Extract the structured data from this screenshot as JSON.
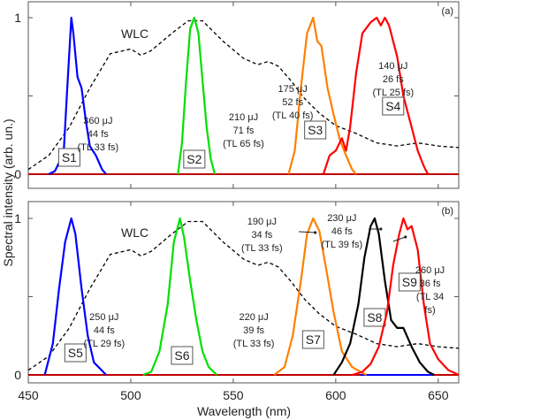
{
  "chart_data": [
    {
      "type": "line",
      "panel": "(a)",
      "xlim": [
        450,
        660
      ],
      "ylim": [
        0,
        1
      ],
      "wlc": {
        "name": "WLC",
        "x": [
          450,
          460,
          470,
          480,
          490,
          500,
          505,
          510,
          520,
          528,
          535,
          545,
          555,
          562,
          567,
          572,
          578,
          585,
          592,
          600,
          610,
          620,
          630,
          640,
          650,
          660
        ],
        "y": [
          0.03,
          0.12,
          0.3,
          0.55,
          0.77,
          0.8,
          0.76,
          0.79,
          0.9,
          0.98,
          0.98,
          0.85,
          0.74,
          0.7,
          0.72,
          0.69,
          0.6,
          0.48,
          0.39,
          0.31,
          0.26,
          0.2,
          0.18,
          0.2,
          0.18,
          0.17
        ]
      },
      "series": [
        {
          "name": "S1",
          "color": "#0000ff",
          "x": [
            460,
            463,
            466,
            467,
            469,
            471,
            472,
            474,
            476,
            478,
            480,
            483,
            486,
            488
          ],
          "y": [
            0,
            0.02,
            0.1,
            0.07,
            0.55,
            1,
            0.9,
            0.62,
            0.55,
            0.35,
            0.18,
            0.12,
            0.03,
            0
          ]
        },
        {
          "name": "S2",
          "color": "#00e000",
          "x": [
            523,
            525,
            527,
            529,
            531,
            533,
            535,
            537,
            539,
            541
          ],
          "y": [
            0,
            0.2,
            0.6,
            0.93,
            1,
            0.9,
            0.6,
            0.3,
            0.1,
            0
          ]
        },
        {
          "name": "S3",
          "color": "#ff8000",
          "x": [
            577,
            580,
            583,
            586,
            589,
            591,
            593,
            596,
            599,
            602,
            605,
            608,
            610
          ],
          "y": [
            0,
            0.15,
            0.55,
            0.9,
            1,
            0.85,
            0.82,
            0.55,
            0.38,
            0.22,
            0.12,
            0.03,
            0
          ]
        },
        {
          "name": "S4",
          "color": "#ff0000",
          "x": [
            594,
            597,
            600,
            603,
            605,
            607,
            610,
            613,
            617,
            620,
            622,
            624,
            626,
            630,
            633,
            637,
            640,
            643,
            645
          ],
          "y": [
            0,
            0.12,
            0.15,
            0.23,
            0.15,
            0.3,
            0.65,
            0.9,
            0.97,
            1,
            0.95,
            1,
            0.95,
            0.75,
            0.5,
            0.3,
            0.15,
            0.05,
            0
          ]
        }
      ],
      "annotations": [
        {
          "target": "S1",
          "lines": [
            "360 μJ",
            "44 fs",
            "(TL 33 fs)"
          ]
        },
        {
          "target": "S2",
          "lines": [
            "210 μJ",
            "71 fs",
            "(TL 65 fs)"
          ]
        },
        {
          "target": "S3",
          "lines": [
            "175 μJ",
            "52 fs",
            "(TL 40 fs)"
          ]
        },
        {
          "target": "S4",
          "lines": [
            "140 μJ",
            "26 fs",
            "(TL 25 fs)"
          ]
        }
      ]
    },
    {
      "type": "line",
      "panel": "(b)",
      "xlim": [
        450,
        660
      ],
      "ylim": [
        0,
        1
      ],
      "wlc": {
        "name": "WLC",
        "x": [
          450,
          460,
          470,
          480,
          490,
          500,
          505,
          510,
          520,
          528,
          535,
          545,
          555,
          562,
          567,
          572,
          578,
          585,
          592,
          600,
          610,
          620,
          630,
          640,
          650,
          660
        ],
        "y": [
          0.03,
          0.12,
          0.3,
          0.55,
          0.77,
          0.8,
          0.76,
          0.79,
          0.9,
          0.98,
          0.98,
          0.85,
          0.74,
          0.7,
          0.72,
          0.69,
          0.6,
          0.48,
          0.39,
          0.31,
          0.26,
          0.2,
          0.18,
          0.2,
          0.18,
          0.17
        ]
      },
      "series": [
        {
          "name": "S5",
          "color": "#0000ff",
          "x": [
            458,
            462,
            465,
            468,
            471,
            473,
            476,
            479,
            482,
            485,
            488
          ],
          "y": [
            0,
            0.2,
            0.55,
            0.85,
            1,
            0.9,
            0.55,
            0.25,
            0.08,
            0.04,
            0
          ]
        },
        {
          "name": "S6",
          "color": "#00e000",
          "x": [
            506,
            510,
            514,
            518,
            521,
            524,
            526,
            529,
            532,
            535,
            538,
            542
          ],
          "y": [
            0,
            0.02,
            0.15,
            0.45,
            0.85,
            1,
            0.88,
            0.6,
            0.35,
            0.15,
            0.05,
            0
          ]
        },
        {
          "name": "S7",
          "color": "#ff8000",
          "x": [
            570,
            575,
            579,
            583,
            586,
            589,
            592,
            595,
            599,
            603,
            608,
            612,
            615
          ],
          "y": [
            0,
            0.05,
            0.25,
            0.6,
            0.9,
            1,
            0.92,
            0.7,
            0.4,
            0.15,
            0.05,
            0.02,
            0
          ]
        },
        {
          "name": "S8",
          "color": "#000000",
          "x": [
            599,
            603,
            607,
            611,
            614,
            617,
            619,
            621,
            624,
            627,
            630,
            633,
            637,
            641,
            645,
            648
          ],
          "y": [
            0,
            0.08,
            0.2,
            0.45,
            0.75,
            0.95,
            1,
            0.9,
            0.6,
            0.35,
            0.3,
            0.3,
            0.18,
            0.08,
            0.02,
            0
          ]
        },
        {
          "name": "S9",
          "color": "#ff0000",
          "x": [
            608,
            613,
            617,
            621,
            625,
            628,
            631,
            633,
            635,
            637,
            640,
            643,
            646,
            650,
            655,
            660
          ],
          "y": [
            0,
            0.02,
            0.07,
            0.18,
            0.4,
            0.7,
            0.9,
            1,
            0.93,
            0.95,
            0.8,
            0.45,
            0.2,
            0.1,
            0.03,
            0
          ]
        }
      ],
      "annotations": [
        {
          "target": "S5",
          "lines": [
            "250 μJ",
            "44 fs",
            "(TL 29 fs)"
          ]
        },
        {
          "target": "S6",
          "lines": [
            "220 μJ",
            "39 fs",
            "(TL 33 fs)"
          ]
        },
        {
          "target": "S7",
          "lines": [
            "190 μJ",
            "34 fs",
            "(TL 33 fs)"
          ]
        },
        {
          "target": "S8",
          "lines": [
            "230 μJ",
            "46 fs",
            "(TL 39 fs)"
          ]
        },
        {
          "target": "S9",
          "lines": [
            "260 μJ",
            "36 fs",
            "(TL 34",
            "fs)"
          ]
        }
      ]
    }
  ],
  "xlabel": "Wavelength (nm)",
  "ylabel": "Spectral intensity (arb. un.)",
  "xticks": [
    "450",
    "500",
    "550",
    "600",
    "650"
  ],
  "yticks": [
    "0",
    "1"
  ],
  "wlc_label": "WLC"
}
